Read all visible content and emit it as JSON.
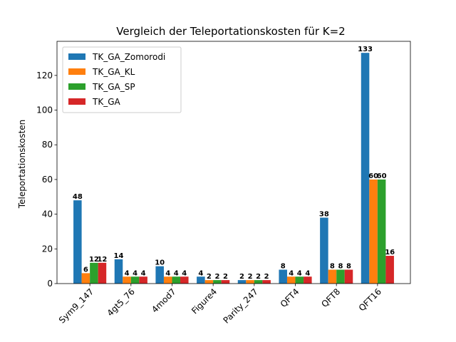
{
  "chart_data": {
    "type": "bar",
    "title": "Vergleich der Teleportationskosten für K=2",
    "xlabel": "",
    "ylabel": "Teleportationskosten",
    "categories": [
      "Sym9_147",
      "4gt5_76",
      "4mod7",
      "Figure4",
      "Parity_247",
      "QFT4",
      "QFT8",
      "QFT16"
    ],
    "series": [
      {
        "name": "TK_GA_Zomorodi",
        "color": "#1f77b4",
        "values": [
          48,
          14,
          10,
          4,
          2,
          8,
          38,
          133
        ]
      },
      {
        "name": "TK_GA_KL",
        "color": "#ff7f0e",
        "values": [
          6,
          4,
          4,
          2,
          2,
          4,
          8,
          60
        ]
      },
      {
        "name": "TK_GA_SP",
        "color": "#2ca02c",
        "values": [
          12,
          4,
          4,
          2,
          2,
          4,
          8,
          60
        ]
      },
      {
        "name": "TK_GA",
        "color": "#d62728",
        "values": [
          12,
          4,
          4,
          2,
          2,
          4,
          8,
          16
        ]
      }
    ],
    "ylim": [
      0,
      139.65
    ],
    "yticks": [
      0,
      20,
      40,
      60,
      80,
      100,
      120
    ],
    "legend_position": "top-left",
    "grid": false
  }
}
